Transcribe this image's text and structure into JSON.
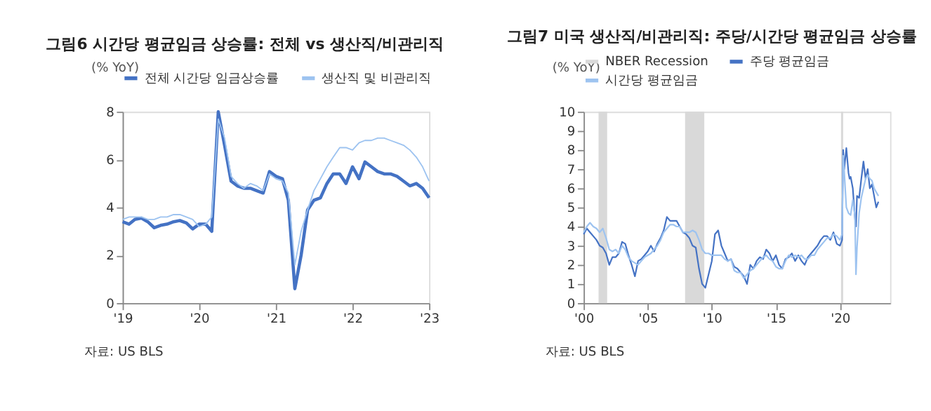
{
  "chart_data": [
    {
      "type": "line",
      "title": "그림6  시간당 평균임금 상승률: 전체 vs 생산직/비관리직",
      "ylabel": "(% YoY)",
      "annotations": [
        "자료: US BLS"
      ],
      "x": [
        "2019-01",
        "2019-02",
        "2019-03",
        "2019-04",
        "2019-05",
        "2019-06",
        "2019-07",
        "2019-08",
        "2019-09",
        "2019-10",
        "2019-11",
        "2019-12",
        "2020-01",
        "2020-02",
        "2020-03",
        "2020-04",
        "2020-05",
        "2020-06",
        "2020-07",
        "2020-08",
        "2020-09",
        "2020-10",
        "2020-11",
        "2020-12",
        "2021-01",
        "2021-02",
        "2021-03",
        "2021-04",
        "2021-05",
        "2021-06",
        "2021-07",
        "2021-08",
        "2021-09",
        "2021-10",
        "2021-11",
        "2021-12",
        "2022-01",
        "2022-02",
        "2022-03",
        "2022-04",
        "2022-05",
        "2022-06",
        "2022-07",
        "2022-08",
        "2022-09",
        "2022-10",
        "2022-11",
        "2022-12",
        "2023-01"
      ],
      "series": [
        {
          "name": "전체 시간당 임금상승률",
          "color": "#4472c4",
          "values": [
            3.4,
            3.3,
            3.5,
            3.55,
            3.4,
            3.15,
            3.25,
            3.3,
            3.4,
            3.45,
            3.35,
            3.1,
            3.3,
            3.3,
            3.0,
            8.0,
            6.6,
            5.1,
            4.9,
            4.8,
            4.8,
            4.7,
            4.6,
            5.5,
            5.3,
            5.2,
            4.3,
            0.6,
            2.0,
            3.9,
            4.3,
            4.4,
            5.0,
            5.4,
            5.4,
            5.0,
            5.7,
            5.2,
            5.9,
            5.7,
            5.5,
            5.4,
            5.4,
            5.3,
            5.1,
            4.9,
            5.0,
            4.8,
            4.4
          ]
        },
        {
          "name": "생산직 및 비관리직",
          "color": "#9dc3f0",
          "values": [
            3.5,
            3.6,
            3.6,
            3.6,
            3.5,
            3.5,
            3.6,
            3.6,
            3.7,
            3.7,
            3.6,
            3.5,
            3.2,
            3.3,
            3.6,
            7.7,
            6.9,
            5.3,
            5.0,
            4.8,
            5.0,
            4.9,
            4.7,
            5.4,
            5.2,
            5.1,
            4.6,
            1.6,
            3.0,
            3.9,
            4.7,
            5.2,
            5.7,
            6.1,
            6.5,
            6.5,
            6.4,
            6.7,
            6.8,
            6.8,
            6.9,
            6.9,
            6.8,
            6.7,
            6.6,
            6.4,
            6.1,
            5.7,
            5.1
          ]
        }
      ],
      "xlim": [
        "2019-01",
        "2023-01"
      ],
      "xticks": [
        {
          "value": "2019-01",
          "label": "'19"
        },
        {
          "value": "2020-01",
          "label": "'20"
        },
        {
          "value": "2021-01",
          "label": "'21"
        },
        {
          "value": "2022-01",
          "label": "'22"
        },
        {
          "value": "2023-01",
          "label": "'23"
        }
      ],
      "ylim": [
        0,
        8
      ],
      "yticks": [
        0,
        2,
        4,
        6,
        8
      ],
      "grid": false,
      "legend": "top"
    },
    {
      "type": "line",
      "title": "그림7  미국 생산직/비관리직: 주당/시간당 평균임금 상승률",
      "ylabel": "(% YoY)",
      "annotations": [
        "자료: US BLS"
      ],
      "series": [
        {
          "name": "주당 평균임금",
          "color": "#4472c4",
          "x": [
            "2000-01",
            "2000-04",
            "2000-07",
            "2000-10",
            "2001-01",
            "2001-04",
            "2001-07",
            "2001-10",
            "2002-01",
            "2002-04",
            "2002-07",
            "2002-10",
            "2003-01",
            "2003-04",
            "2003-07",
            "2003-10",
            "2004-01",
            "2004-04",
            "2004-07",
            "2004-10",
            "2005-01",
            "2005-04",
            "2005-07",
            "2005-10",
            "2006-01",
            "2006-04",
            "2006-07",
            "2006-10",
            "2007-01",
            "2007-04",
            "2007-07",
            "2007-10",
            "2008-01",
            "2008-04",
            "2008-07",
            "2008-10",
            "2009-01",
            "2009-04",
            "2009-07",
            "2009-10",
            "2010-01",
            "2010-04",
            "2010-07",
            "2010-10",
            "2011-01",
            "2011-04",
            "2011-07",
            "2011-10",
            "2012-01",
            "2012-04",
            "2012-07",
            "2012-10",
            "2013-01",
            "2013-04",
            "2013-07",
            "2013-10",
            "2014-01",
            "2014-04",
            "2014-07",
            "2014-10",
            "2015-01",
            "2015-04",
            "2015-07",
            "2015-10",
            "2016-01",
            "2016-04",
            "2016-07",
            "2016-10",
            "2017-01",
            "2017-04",
            "2017-07",
            "2017-10",
            "2018-01",
            "2018-04",
            "2018-07",
            "2018-10",
            "2019-01",
            "2019-04",
            "2019-07",
            "2019-10",
            "2020-01",
            "2020-03",
            "2020-04",
            "2020-05",
            "2020-07",
            "2020-09",
            "2020-10",
            "2020-11",
            "2021-01",
            "2021-03",
            "2021-04",
            "2021-05",
            "2021-07",
            "2021-09",
            "2021-11",
            "2022-01",
            "2022-03",
            "2022-05",
            "2022-07",
            "2022-09",
            "2022-11",
            "2023-01"
          ],
          "values": [
            3.6,
            3.9,
            3.7,
            3.5,
            3.3,
            3.0,
            2.9,
            2.6,
            2.0,
            2.4,
            2.4,
            2.6,
            3.2,
            3.1,
            2.5,
            2.0,
            1.4,
            2.2,
            2.3,
            2.5,
            2.7,
            3.0,
            2.7,
            3.1,
            3.4,
            3.8,
            4.5,
            4.3,
            4.3,
            4.3,
            4.0,
            3.7,
            3.6,
            3.4,
            3.0,
            2.9,
            1.8,
            1.0,
            0.8,
            1.5,
            2.2,
            3.6,
            3.8,
            3.0,
            2.6,
            2.2,
            2.3,
            1.9,
            1.8,
            1.6,
            1.4,
            1.0,
            2.0,
            1.8,
            2.2,
            2.4,
            2.3,
            2.8,
            2.6,
            2.2,
            2.5,
            2.0,
            1.8,
            2.3,
            2.4,
            2.6,
            2.2,
            2.5,
            2.2,
            2.0,
            2.4,
            2.6,
            2.8,
            3.0,
            3.3,
            3.5,
            3.5,
            3.3,
            3.7,
            3.1,
            3.0,
            3.3,
            8.0,
            7.0,
            8.1,
            6.8,
            6.5,
            6.6,
            6.0,
            4.5,
            4.0,
            5.6,
            5.5,
            6.5,
            7.4,
            6.5,
            7.0,
            6.0,
            6.2,
            5.6,
            5.0,
            5.3
          ]
        },
        {
          "name": "시간당 평균임금",
          "color": "#9dc3f0",
          "x": [
            "2000-01",
            "2000-04",
            "2000-07",
            "2000-10",
            "2001-01",
            "2001-04",
            "2001-07",
            "2001-10",
            "2002-01",
            "2002-04",
            "2002-07",
            "2002-10",
            "2003-01",
            "2003-04",
            "2003-07",
            "2003-10",
            "2004-01",
            "2004-04",
            "2004-07",
            "2004-10",
            "2005-01",
            "2005-04",
            "2005-07",
            "2005-10",
            "2006-01",
            "2006-04",
            "2006-07",
            "2006-10",
            "2007-01",
            "2007-04",
            "2007-07",
            "2007-10",
            "2008-01",
            "2008-04",
            "2008-07",
            "2008-10",
            "2009-01",
            "2009-04",
            "2009-07",
            "2009-10",
            "2010-01",
            "2010-04",
            "2010-07",
            "2010-10",
            "2011-01",
            "2011-04",
            "2011-07",
            "2011-10",
            "2012-01",
            "2012-04",
            "2012-07",
            "2012-10",
            "2013-01",
            "2013-04",
            "2013-07",
            "2013-10",
            "2014-01",
            "2014-04",
            "2014-07",
            "2014-10",
            "2015-01",
            "2015-04",
            "2015-07",
            "2015-10",
            "2016-01",
            "2016-04",
            "2016-07",
            "2016-10",
            "2017-01",
            "2017-04",
            "2017-07",
            "2017-10",
            "2018-01",
            "2018-04",
            "2018-07",
            "2018-10",
            "2019-01",
            "2019-04",
            "2019-07",
            "2019-10",
            "2020-01",
            "2020-03",
            "2020-04",
            "2020-05",
            "2020-07",
            "2020-09",
            "2020-11",
            "2021-01",
            "2021-03",
            "2021-04",
            "2021-05",
            "2021-07",
            "2021-09",
            "2021-11",
            "2022-01",
            "2022-03",
            "2022-05",
            "2022-07",
            "2022-09",
            "2022-11",
            "2023-01"
          ],
          "values": [
            3.7,
            4.0,
            4.2,
            4.0,
            3.9,
            3.7,
            3.9,
            3.4,
            2.8,
            2.7,
            2.8,
            2.6,
            3.0,
            2.8,
            2.4,
            2.2,
            2.1,
            2.0,
            2.2,
            2.4,
            2.5,
            2.6,
            2.8,
            3.0,
            3.3,
            3.7,
            3.9,
            4.1,
            4.1,
            4.0,
            4.0,
            3.7,
            3.7,
            3.7,
            3.8,
            3.7,
            3.3,
            2.8,
            2.6,
            2.6,
            2.5,
            2.5,
            2.5,
            2.5,
            2.3,
            2.2,
            2.3,
            1.7,
            1.6,
            1.6,
            1.3,
            1.5,
            1.7,
            1.8,
            2.0,
            2.2,
            2.4,
            2.5,
            2.3,
            2.2,
            1.9,
            1.8,
            1.8,
            2.2,
            2.5,
            2.4,
            2.5,
            2.4,
            2.5,
            2.3,
            2.3,
            2.5,
            2.5,
            2.8,
            3.0,
            3.2,
            3.4,
            3.4,
            3.6,
            3.5,
            3.3,
            3.6,
            7.7,
            6.9,
            5.0,
            4.7,
            4.6,
            5.4,
            4.6,
            1.5,
            2.9,
            4.7,
            5.5,
            6.0,
            6.5,
            6.7,
            6.5,
            6.4,
            6.0,
            5.8,
            5.6
          ]
        }
      ],
      "bands": [
        {
          "axis": "x",
          "from": "2001-03",
          "to": "2001-11",
          "label": "NBER Recession",
          "color": "#d9d9d9"
        },
        {
          "axis": "x",
          "from": "2007-12",
          "to": "2009-06"
        },
        {
          "axis": "x",
          "from": "2020-02",
          "to": "2020-04"
        }
      ],
      "xlim": [
        "2000-01",
        "2023-12"
      ],
      "xticks": [
        {
          "value": "2000-01",
          "label": "'00"
        },
        {
          "value": "2005-01",
          "label": "'05"
        },
        {
          "value": "2010-01",
          "label": "'10"
        },
        {
          "value": "2015-01",
          "label": "'15"
        },
        {
          "value": "2020-01",
          "label": "'20"
        }
      ],
      "ylim": [
        0,
        10
      ],
      "yticks": [
        0,
        1,
        2,
        3,
        4,
        5,
        6,
        7,
        8,
        9,
        10
      ],
      "grid": false,
      "legend": "top"
    }
  ]
}
